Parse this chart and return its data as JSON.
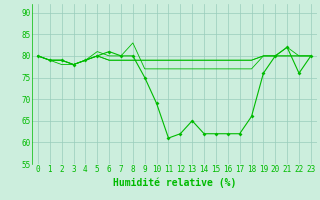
{
  "xlabel": "Humidité relative (%)",
  "bg_color": "#cceedd",
  "line_color": "#00bb00",
  "grid_color": "#99ccbb",
  "text_color": "#00bb00",
  "xlim": [
    -0.5,
    23.5
  ],
  "ylim": [
    55,
    92
  ],
  "yticks": [
    55,
    60,
    65,
    70,
    75,
    80,
    85,
    90
  ],
  "xticks": [
    0,
    1,
    2,
    3,
    4,
    5,
    6,
    7,
    8,
    9,
    10,
    11,
    12,
    13,
    14,
    15,
    16,
    17,
    18,
    19,
    20,
    21,
    22,
    23
  ],
  "series": [
    [
      80,
      79,
      79,
      78,
      79,
      80,
      81,
      80,
      80,
      75,
      69,
      61,
      62,
      65,
      62,
      62,
      62,
      62,
      66,
      76,
      80,
      82,
      76,
      80
    ],
    [
      80,
      79,
      78,
      78,
      79,
      81,
      80,
      80,
      83,
      77,
      77,
      77,
      77,
      77,
      77,
      77,
      77,
      77,
      77,
      80,
      80,
      82,
      80,
      80
    ],
    [
      80,
      79,
      79,
      78,
      79,
      80,
      79,
      79,
      79,
      79,
      79,
      79,
      79,
      79,
      79,
      79,
      79,
      79,
      79,
      80,
      80,
      80,
      80,
      80
    ],
    [
      80,
      79,
      79,
      78,
      79,
      80,
      79,
      79,
      79,
      79,
      79,
      79,
      79,
      79,
      79,
      79,
      79,
      79,
      79,
      80,
      80,
      80,
      80,
      80
    ]
  ],
  "fontsize_tick": 5.5,
  "fontsize_xlabel": 7
}
